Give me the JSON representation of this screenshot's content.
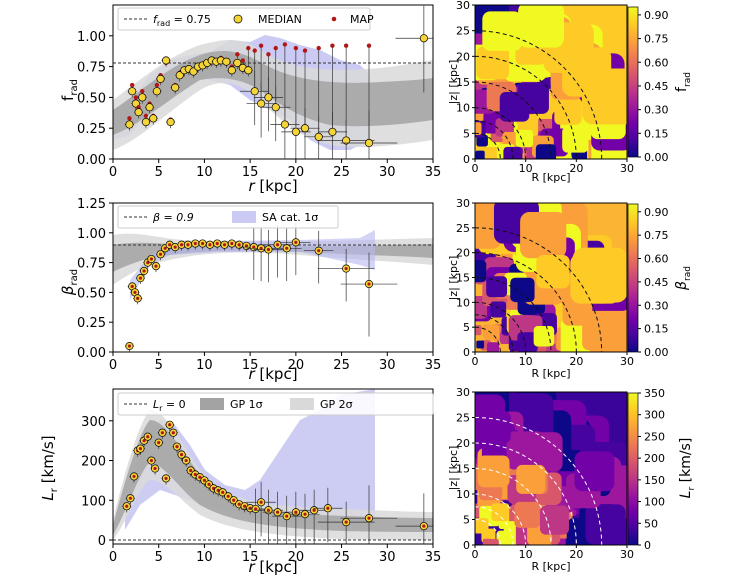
{
  "chart_data": [
    {
      "type": "scatter",
      "panel": "left-top",
      "ylabel": "f_rad",
      "xlabel": "r [kpc]",
      "xlim": [
        0,
        35
      ],
      "ylim": [
        0,
        1.25
      ],
      "xticks": [
        "0",
        "5",
        "10",
        "15",
        "20",
        "25",
        "30",
        "35"
      ],
      "yticks": [
        "0.00",
        "0.25",
        "0.50",
        "0.75",
        "1.00"
      ],
      "legend": [
        "f_rad = 0.75",
        "MEDIAN",
        "MAP"
      ],
      "reference_line": 0.75,
      "points": [
        {
          "r": 1.8,
          "median": 0.28,
          "map": 0.33
        },
        {
          "r": 2.1,
          "median": 0.55,
          "map": 0.6
        },
        {
          "r": 2.5,
          "median": 0.45,
          "map": 0.5
        },
        {
          "r": 2.8,
          "median": 0.38,
          "map": 0.42
        },
        {
          "r": 3.2,
          "median": 0.5,
          "map": 0.55
        },
        {
          "r": 3.6,
          "median": 0.3,
          "map": 0.35
        },
        {
          "r": 4.0,
          "median": 0.42,
          "map": 0.45
        },
        {
          "r": 4.4,
          "median": 0.33,
          "map": 0.35
        },
        {
          "r": 4.8,
          "median": 0.55,
          "map": 0.6
        },
        {
          "r": 5.2,
          "median": 0.65,
          "map": 0.68
        },
        {
          "r": 5.8,
          "median": 0.8,
          "map": 0.78
        },
        {
          "r": 6.3,
          "median": 0.3,
          "map": 0.32
        },
        {
          "r": 6.8,
          "median": 0.58,
          "map": 0.6
        },
        {
          "r": 7.3,
          "median": 0.68,
          "map": 0.7
        },
        {
          "r": 7.8,
          "median": 0.72,
          "map": 0.73
        },
        {
          "r": 8.3,
          "median": 0.73,
          "map": 0.74
        },
        {
          "r": 8.8,
          "median": 0.71,
          "map": 0.72
        },
        {
          "r": 9.3,
          "median": 0.75,
          "map": 0.76
        },
        {
          "r": 9.8,
          "median": 0.76,
          "map": 0.77
        },
        {
          "r": 10.3,
          "median": 0.78,
          "map": 0.79
        },
        {
          "r": 10.8,
          "median": 0.8,
          "map": 0.81
        },
        {
          "r": 11.3,
          "median": 0.79,
          "map": 0.8
        },
        {
          "r": 11.8,
          "median": 0.8,
          "map": 0.82
        },
        {
          "r": 12.4,
          "median": 0.79,
          "map": 0.8
        },
        {
          "r": 13.0,
          "median": 0.72,
          "map": 0.75
        },
        {
          "r": 13.6,
          "median": 0.78,
          "map": 0.85
        },
        {
          "r": 14.2,
          "median": 0.74,
          "map": 0.8
        },
        {
          "r": 14.8,
          "median": 0.72,
          "map": 0.9
        },
        {
          "r": 15.5,
          "median": 0.55,
          "map": 0.88
        },
        {
          "r": 16.2,
          "median": 0.45,
          "map": 0.92
        },
        {
          "r": 17.0,
          "median": 0.5,
          "map": 0.85
        },
        {
          "r": 17.8,
          "median": 0.42,
          "map": 0.9
        },
        {
          "r": 18.8,
          "median": 0.28,
          "map": 0.93
        },
        {
          "r": 20.0,
          "median": 0.22,
          "map": 0.9
        },
        {
          "r": 21.0,
          "median": 0.25,
          "map": 0.88
        },
        {
          "r": 22.5,
          "median": 0.18,
          "map": 0.9
        },
        {
          "r": 24.0,
          "median": 0.22,
          "map": 0.92
        },
        {
          "r": 25.5,
          "median": 0.15,
          "map": 0.92
        },
        {
          "r": 28.0,
          "median": 0.13,
          "map": 0.92
        },
        {
          "r": 34.0,
          "median": 0.98,
          "map": 0.98
        }
      ]
    },
    {
      "type": "scatter",
      "panel": "left-middle",
      "ylabel": "β_rad",
      "xlabel": "r [kpc]",
      "xlim": [
        0,
        35
      ],
      "ylim": [
        0,
        1.25
      ],
      "xticks": [
        "0",
        "5",
        "10",
        "15",
        "20",
        "25",
        "30",
        "35"
      ],
      "yticks": [
        "0.00",
        "0.25",
        "0.50",
        "0.75",
        "1.00",
        "1.25"
      ],
      "legend": [
        "β = 0.9",
        "SA cat. 1σ"
      ],
      "reference_line": 0.9,
      "points": [
        {
          "r": 1.8,
          "median": 0.05
        },
        {
          "r": 2.1,
          "median": 0.55
        },
        {
          "r": 2.4,
          "median": 0.5
        },
        {
          "r": 2.7,
          "median": 0.45
        },
        {
          "r": 3.0,
          "median": 0.62
        },
        {
          "r": 3.4,
          "median": 0.68
        },
        {
          "r": 3.8,
          "median": 0.75
        },
        {
          "r": 4.2,
          "median": 0.78
        },
        {
          "r": 4.7,
          "median": 0.72
        },
        {
          "r": 5.2,
          "median": 0.82
        },
        {
          "r": 5.7,
          "median": 0.87
        },
        {
          "r": 6.2,
          "median": 0.9
        },
        {
          "r": 6.8,
          "median": 0.88
        },
        {
          "r": 7.5,
          "median": 0.9
        },
        {
          "r": 8.2,
          "median": 0.9
        },
        {
          "r": 9.0,
          "median": 0.91
        },
        {
          "r": 9.8,
          "median": 0.91
        },
        {
          "r": 10.6,
          "median": 0.9
        },
        {
          "r": 11.4,
          "median": 0.91
        },
        {
          "r": 12.2,
          "median": 0.9
        },
        {
          "r": 13.0,
          "median": 0.91
        },
        {
          "r": 13.8,
          "median": 0.9
        },
        {
          "r": 14.6,
          "median": 0.89
        },
        {
          "r": 15.4,
          "median": 0.88
        },
        {
          "r": 16.2,
          "median": 0.87
        },
        {
          "r": 17.0,
          "median": 0.86
        },
        {
          "r": 18.0,
          "median": 0.9
        },
        {
          "r": 19.0,
          "median": 0.87
        },
        {
          "r": 20.0,
          "median": 0.92
        },
        {
          "r": 22.5,
          "median": 0.85
        },
        {
          "r": 25.5,
          "median": 0.7
        },
        {
          "r": 28.0,
          "median": 0.57
        }
      ]
    },
    {
      "type": "scatter",
      "panel": "left-bottom",
      "ylabel": "L_r [km/s]",
      "xlabel": "r [kpc]",
      "xlim": [
        0,
        35
      ],
      "ylim": [
        -10,
        380
      ],
      "xticks": [
        "0",
        "5",
        "10",
        "15",
        "20",
        "25",
        "30",
        "35"
      ],
      "yticks": [
        "0",
        "100",
        "200",
        "300"
      ],
      "legend": [
        "L_r = 0",
        "GP 1σ",
        "GP 2σ"
      ],
      "reference_line": 0,
      "points": [
        {
          "r": 1.5,
          "median": 85
        },
        {
          "r": 1.9,
          "median": 105
        },
        {
          "r": 2.3,
          "median": 160
        },
        {
          "r": 2.7,
          "median": 225
        },
        {
          "r": 3.0,
          "median": 230
        },
        {
          "r": 3.4,
          "median": 250
        },
        {
          "r": 3.8,
          "median": 260
        },
        {
          "r": 4.2,
          "median": 200
        },
        {
          "r": 4.6,
          "median": 180
        },
        {
          "r": 5.0,
          "median": 245
        },
        {
          "r": 5.4,
          "median": 270
        },
        {
          "r": 5.8,
          "median": 155
        },
        {
          "r": 6.2,
          "median": 290
        },
        {
          "r": 6.6,
          "median": 270
        },
        {
          "r": 7.0,
          "median": 235
        },
        {
          "r": 7.5,
          "median": 215
        },
        {
          "r": 8.0,
          "median": 200
        },
        {
          "r": 8.5,
          "median": 175
        },
        {
          "r": 9.0,
          "median": 165
        },
        {
          "r": 9.5,
          "median": 158
        },
        {
          "r": 10.0,
          "median": 150
        },
        {
          "r": 10.5,
          "median": 140
        },
        {
          "r": 11.0,
          "median": 130
        },
        {
          "r": 11.5,
          "median": 125
        },
        {
          "r": 12.0,
          "median": 120
        },
        {
          "r": 12.6,
          "median": 110
        },
        {
          "r": 13.2,
          "median": 100
        },
        {
          "r": 13.8,
          "median": 90
        },
        {
          "r": 14.4,
          "median": 85
        },
        {
          "r": 15.0,
          "median": 80
        },
        {
          "r": 15.6,
          "median": 78
        },
        {
          "r": 16.2,
          "median": 95
        },
        {
          "r": 17.0,
          "median": 75
        },
        {
          "r": 18.0,
          "median": 70
        },
        {
          "r": 19.0,
          "median": 60
        },
        {
          "r": 20.0,
          "median": 70
        },
        {
          "r": 21.0,
          "median": 65
        },
        {
          "r": 22.0,
          "median": 75
        },
        {
          "r": 23.5,
          "median": 80
        },
        {
          "r": 25.5,
          "median": 45
        },
        {
          "r": 28.0,
          "median": 55
        },
        {
          "r": 34.0,
          "median": 35
        }
      ]
    },
    {
      "type": "heatmap",
      "panel": "right-top",
      "xlabel": "R [kpc]",
      "ylabel": "|z| [kpc]",
      "xlim": [
        0,
        30
      ],
      "ylim": [
        0,
        30
      ],
      "xticks": [
        "0",
        "10",
        "20",
        "30"
      ],
      "yticks": [
        "0",
        "5",
        "10",
        "15",
        "20",
        "25",
        "30"
      ],
      "colorbar_label": "f_rad",
      "colorbar_ticks": [
        "0.00",
        "0.15",
        "0.30",
        "0.45",
        "0.60",
        "0.75",
        "0.90"
      ],
      "colorbar_range": [
        0,
        0.95
      ],
      "shells_kpc": [
        5,
        7.5,
        10,
        15,
        20,
        25
      ]
    },
    {
      "type": "heatmap",
      "panel": "right-middle",
      "xlabel": "R [kpc]",
      "ylabel": "|z| [kpc]",
      "xlim": [
        0,
        30
      ],
      "ylim": [
        0,
        30
      ],
      "xticks": [
        "0",
        "10",
        "20",
        "30"
      ],
      "yticks": [
        "0",
        "5",
        "10",
        "15",
        "20",
        "25",
        "30"
      ],
      "colorbar_label": "β_rad",
      "colorbar_ticks": [
        "0.00",
        "0.15",
        "0.30",
        "0.45",
        "0.60",
        "0.75",
        "0.90"
      ],
      "colorbar_range": [
        0,
        0.95
      ],
      "shells_kpc": [
        5,
        7.5,
        10,
        15,
        20,
        25
      ]
    },
    {
      "type": "heatmap",
      "panel": "right-bottom",
      "xlabel": "R [kpc]",
      "ylabel": "|z| [kpc]",
      "xlim": [
        0,
        30
      ],
      "ylim": [
        0,
        30
      ],
      "xticks": [
        "0",
        "10",
        "20",
        "30"
      ],
      "yticks": [
        "0",
        "5",
        "10",
        "15",
        "20",
        "25",
        "30"
      ],
      "colorbar_label": "L_r [km/s]",
      "colorbar_ticks": [
        "0",
        "50",
        "100",
        "150",
        "200",
        "250",
        "300",
        "350"
      ],
      "colorbar_range": [
        0,
        350
      ],
      "shells_kpc": [
        5,
        7.5,
        10,
        15,
        20,
        25
      ]
    }
  ],
  "labels": {
    "frad_ylabel": "f",
    "frad_ylabel_sub": "rad",
    "r_label": "r",
    "r_unit": "[kpc]",
    "leg1_frad": "f",
    "leg1_frad_sub": "rad",
    "leg1_frad_val": " = 0.75",
    "leg1_median": "MEDIAN",
    "leg1_map": "MAP",
    "beta_ylabel": "β",
    "beta_ylabel_sub": "rad",
    "leg2_beta": "β = 0.9",
    "leg2_sa": "SA cat. 1σ",
    "lr_ylabel": "L",
    "lr_ylabel_sub": "r",
    "lr_ylabel_unit": " [km/s]",
    "leg3_lr": "L",
    "leg3_lr_sub": "r",
    "leg3_lr_val": " = 0",
    "leg3_gp1": "GP 1σ",
    "leg3_gp2": "GP 2σ",
    "R_label": "R [kpc]",
    "z_label": "|z| [kpc]",
    "cb1_label": "f",
    "cb1_label_sub": "rad",
    "cb2_label": "β",
    "cb2_label_sub": "rad",
    "cb3_label": "L",
    "cb3_label_sub": "r",
    "cb3_label_unit": " [km/s]"
  },
  "colors": {
    "median_fill": "#f5d43a",
    "map_fill": "#b01818",
    "band_dark": "#9a9a9a",
    "band_light": "#d9d9d9",
    "band_blue": "#b8b8f0",
    "plasma": [
      "#0d0887",
      "#46039f",
      "#7201a8",
      "#9c179e",
      "#bd3786",
      "#d8576b",
      "#ed7953",
      "#fb9f3a",
      "#fdca26",
      "#f0f921"
    ]
  }
}
